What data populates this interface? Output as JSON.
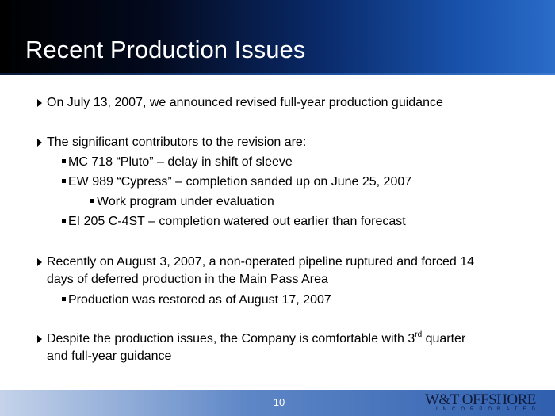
{
  "title": "Recent Production Issues",
  "bullets": {
    "b1": "On July 13, 2007, we announced revised full-year production guidance",
    "b2": "The significant contributors to the revision are:",
    "b2_1": "MC 718 “Pluto” – delay in shift of sleeve",
    "b2_2": "EW 989 “Cypress” – completion sanded up on June 25, 2007",
    "b2_2_1": "Work program under evaluation",
    "b2_3": "EI 205 C-4ST – completion watered out earlier than forecast",
    "b3_line1": "Recently on August 3, 2007, a non-operated pipeline ruptured and forced 14",
    "b3_line2": "days of deferred production in the Main Pass Area",
    "b3_1": "Production was restored as of August 17, 2007",
    "b4_pre": "Despite the production issues, the Company is comfortable with 3",
    "b4_sup": "rd",
    "b4_post": " quarter",
    "b4_line2": "and full-year guidance"
  },
  "footer": {
    "page_number": "10",
    "logo_main": "W&T OFFSHORE",
    "logo_sub": "INCORPORATED"
  },
  "colors": {
    "header_dark": "#000000",
    "header_blue": "#2a6cc8",
    "footer_blue": "#2f5fae",
    "text": "#000000"
  },
  "icons": {
    "level1": "triangle-bullet-icon",
    "level2": "square-bullet-icon"
  }
}
